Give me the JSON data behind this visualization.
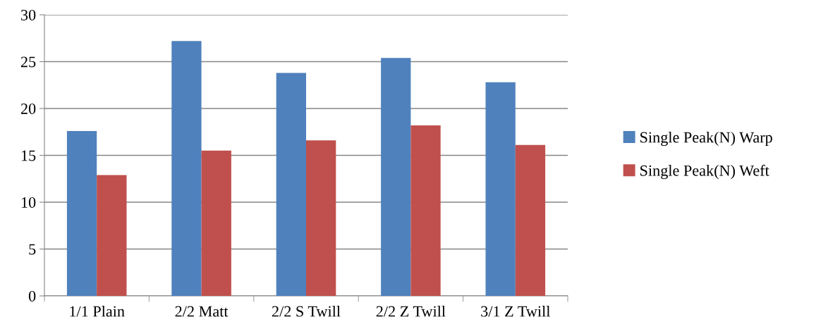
{
  "chart_data": {
    "type": "bar",
    "categories": [
      "1/1 Plain",
      "2/2 Matt",
      "2/2 S Twill",
      "2/2 Z Twill",
      "3/1 Z Twill"
    ],
    "series": [
      {
        "name": "Single Peak(N) Warp",
        "color": "#4f81bd",
        "values": [
          17.6,
          27.2,
          23.8,
          25.4,
          22.8
        ]
      },
      {
        "name": "Single Peak(N) Weft",
        "color": "#c0504d",
        "values": [
          12.9,
          15.5,
          16.6,
          18.2,
          16.1
        ]
      }
    ],
    "ylim": [
      0,
      30
    ],
    "yticks": [
      0,
      5,
      10,
      15,
      20,
      25,
      30
    ],
    "grid": "y",
    "legend": "right"
  }
}
